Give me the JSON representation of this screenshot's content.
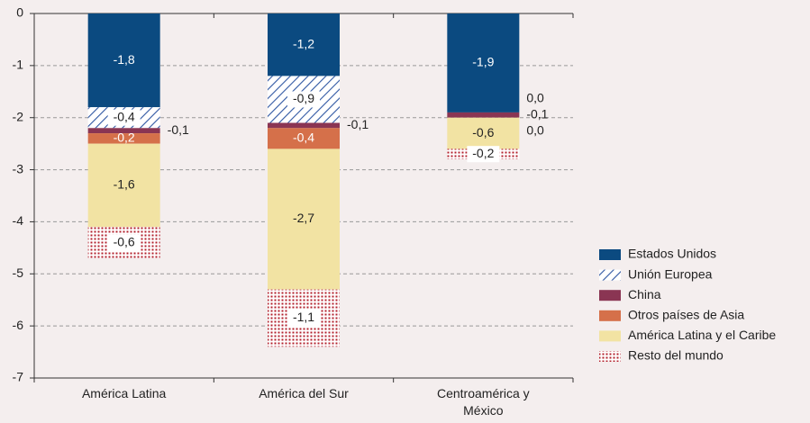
{
  "chart_data": {
    "type": "stacked_bar",
    "categories": [
      "América Latina",
      "América del Sur",
      "Centroamérica y México"
    ],
    "series": [
      {
        "name": "Estados Unidos",
        "color": "#0b4a80",
        "values": [
          -1.8,
          -1.2,
          -1.9
        ],
        "value_labels": [
          "-1,8",
          "-1,2",
          "-1,9"
        ]
      },
      {
        "name": "Unión Europea",
        "color": "#2f57a3",
        "pattern": "hatch",
        "values": [
          -0.4,
          -0.9,
          0.0
        ],
        "value_labels": [
          "-0,4",
          "-0,9",
          "0,0"
        ]
      },
      {
        "name": "China",
        "color": "#8a3553",
        "values": [
          -0.1,
          -0.1,
          -0.1
        ],
        "value_labels": [
          "-0,1",
          "-0,1",
          "-0,1"
        ]
      },
      {
        "name": "Otros países de Asia",
        "color": "#d5704a",
        "values": [
          -0.2,
          -0.4,
          0.0
        ],
        "value_labels": [
          "-0,2",
          "-0,4",
          "0,0"
        ]
      },
      {
        "name": "América Latina y el Caribe",
        "color": "#f2e3a3",
        "values": [
          -1.6,
          -2.7,
          -0.6
        ],
        "value_labels": [
          "-1,6",
          "-2,7",
          "-0,6"
        ]
      },
      {
        "name": "Resto del mundo",
        "color": "#b3222e",
        "pattern": "dots",
        "values": [
          -0.6,
          -1.1,
          -0.2
        ],
        "value_labels": [
          "-0,6",
          "-1,1",
          "-0,2"
        ]
      }
    ],
    "ylim": [
      -7,
      0
    ],
    "yticks": [
      0,
      -1,
      -2,
      -3,
      -4,
      -5,
      -6,
      -7
    ],
    "grid": true,
    "legend": "right"
  }
}
